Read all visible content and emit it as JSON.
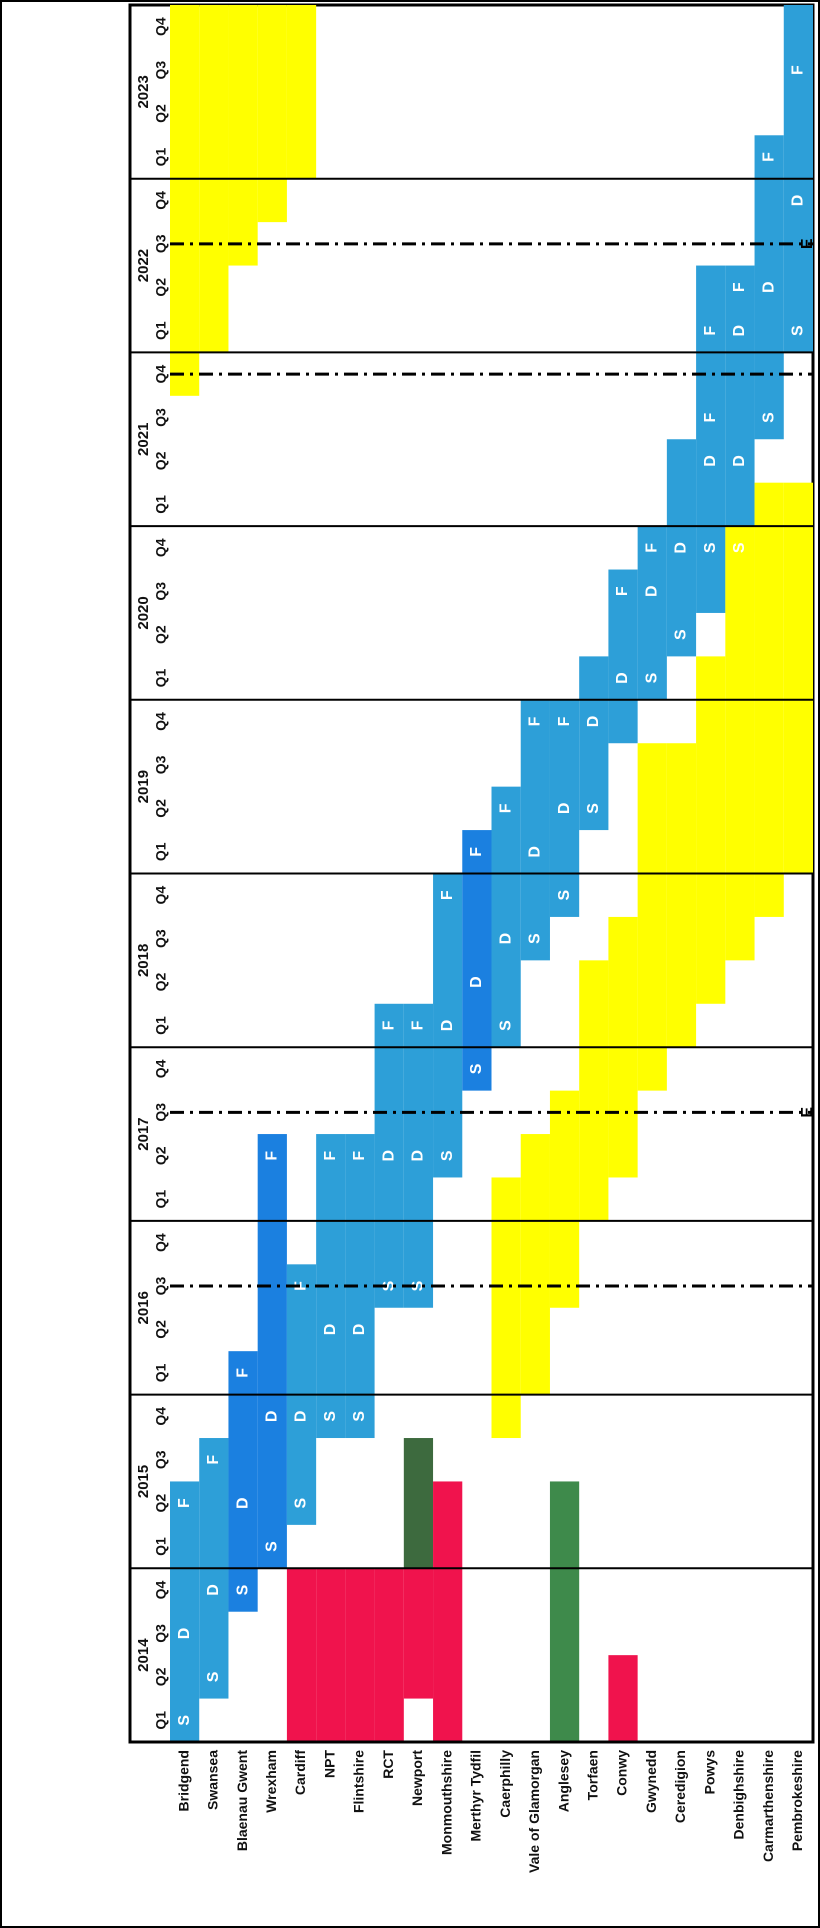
{
  "chart_data": {
    "type": "table",
    "years": [
      "2014",
      "2015",
      "2016",
      "2017",
      "2018",
      "2019",
      "2020",
      "2021",
      "2022",
      "2023"
    ],
    "quarter_labels": [
      "Q1",
      "Q2",
      "Q3",
      "Q4"
    ],
    "rows": [
      "Bridgend",
      "Swansea",
      "Blaenau Gwent",
      "Wrexham",
      "Cardiff",
      "NPT",
      "Flintshire",
      "RCT",
      "Newport",
      "Monmouthshire",
      "Merthyr Tydfil",
      "Caerphilly",
      "Vale of Glamorgan",
      "Anglesey",
      "Torfaen",
      "Conwy",
      "Gwynedd",
      "Ceredigion",
      "Powys",
      "Denbighshire",
      "Carmarthenshire",
      "Pembrokeshire"
    ],
    "colors": {
      "blue": "#2d9fd8",
      "darkblue": "#1b80e0",
      "yellow": "#ffff00",
      "red": "#f0134d",
      "green": "#3e8a4b",
      "olive": "#3d6a3e"
    },
    "quarter_start": "2014Q1",
    "bars": [
      {
        "row": 0,
        "from": "2014Q1",
        "to": "2015Q2",
        "color": "blue"
      },
      {
        "row": 1,
        "from": "2014Q2",
        "to": "2015Q3",
        "color": "blue"
      },
      {
        "row": 2,
        "from": "2014Q4",
        "to": "2016Q1",
        "color": "darkblue"
      },
      {
        "row": 3,
        "from": "2015Q1",
        "to": "2017Q2",
        "color": "darkblue"
      },
      {
        "row": 4,
        "from": "2015Q2",
        "to": "2016Q3",
        "color": "blue"
      },
      {
        "row": 5,
        "from": "2015Q4",
        "to": "2017Q2",
        "color": "blue"
      },
      {
        "row": 6,
        "from": "2015Q4",
        "to": "2017Q2",
        "color": "blue"
      },
      {
        "row": 7,
        "from": "2016Q3",
        "to": "2018Q1",
        "color": "blue"
      },
      {
        "row": 8,
        "from": "2016Q3",
        "to": "2018Q1",
        "color": "blue"
      },
      {
        "row": 9,
        "from": "2017Q2",
        "to": "2018Q4",
        "color": "blue"
      },
      {
        "row": 10,
        "from": "2017Q4",
        "to": "2019Q1",
        "color": "darkblue"
      },
      {
        "row": 11,
        "from": "2018Q1",
        "to": "2019Q2",
        "color": "blue"
      },
      {
        "row": 12,
        "from": "2018Q3",
        "to": "2019Q4",
        "color": "blue"
      },
      {
        "row": 13,
        "from": "2018Q4",
        "to": "2019Q4",
        "color": "blue"
      },
      {
        "row": 14,
        "from": "2019Q2",
        "to": "2020Q1",
        "color": "blue"
      },
      {
        "row": 15,
        "from": "2019Q4",
        "to": "2020Q3",
        "color": "blue"
      },
      {
        "row": 16,
        "from": "2020Q1",
        "to": "2020Q4",
        "color": "blue"
      },
      {
        "row": 17,
        "from": "2020Q2",
        "to": "2021Q2",
        "color": "blue"
      },
      {
        "row": 18,
        "from": "2020Q3",
        "to": "2022Q2",
        "color": "blue"
      },
      {
        "row": 19,
        "from": "2020Q3",
        "to": "2022Q2",
        "color": "blue"
      },
      {
        "row": 20,
        "from": "2021Q3",
        "to": "2023Q1",
        "color": "blue"
      },
      {
        "row": 21,
        "from": "2022Q1",
        "to": "2023Q4",
        "color": "blue"
      },
      {
        "row": 4,
        "from": "2014Q1",
        "to": "2014Q4",
        "color": "red"
      },
      {
        "row": 5,
        "from": "2014Q1",
        "to": "2014Q4",
        "color": "red"
      },
      {
        "row": 6,
        "from": "2014Q1",
        "to": "2014Q4",
        "color": "red"
      },
      {
        "row": 7,
        "from": "2014Q1",
        "to": "2014Q4",
        "color": "red"
      },
      {
        "row": 8,
        "from": "2014Q2",
        "to": "2014Q4",
        "color": "red"
      },
      {
        "row": 8,
        "from": "2015Q1",
        "to": "2015Q3",
        "color": "olive"
      },
      {
        "row": 9,
        "from": "2014Q1",
        "to": "2015Q2",
        "color": "red"
      },
      {
        "row": 13,
        "from": "2014Q1",
        "to": "2015Q2",
        "color": "green"
      },
      {
        "row": 15,
        "from": "2014Q1",
        "to": "2014Q2",
        "color": "red"
      },
      {
        "row": 0,
        "from": "2021Q4",
        "to": "2023Q4",
        "color": "yellow"
      },
      {
        "row": 1,
        "from": "2022Q1",
        "to": "2023Q4",
        "color": "yellow"
      },
      {
        "row": 2,
        "from": "2022Q3",
        "to": "2023Q4",
        "color": "yellow"
      },
      {
        "row": 3,
        "from": "2022Q4",
        "to": "2023Q4",
        "color": "yellow"
      },
      {
        "row": 4,
        "from": "2023Q1",
        "to": "2023Q4",
        "color": "yellow"
      },
      {
        "row": 11,
        "from": "2015Q4",
        "to": "2017Q1",
        "color": "yellow"
      },
      {
        "row": 12,
        "from": "2016Q1",
        "to": "2017Q2",
        "color": "yellow"
      },
      {
        "row": 13,
        "from": "2016Q3",
        "to": "2017Q3",
        "color": "yellow"
      },
      {
        "row": 14,
        "from": "2017Q1",
        "to": "2018Q2",
        "color": "yellow"
      },
      {
        "row": 15,
        "from": "2017Q2",
        "to": "2018Q3",
        "color": "yellow"
      },
      {
        "row": 16,
        "from": "2017Q4",
        "to": "2019Q3",
        "color": "yellow"
      },
      {
        "row": 17,
        "from": "2018Q1",
        "to": "2019Q3",
        "color": "yellow"
      },
      {
        "row": 18,
        "from": "2018Q2",
        "to": "2020Q1",
        "color": "yellow"
      },
      {
        "row": 19,
        "from": "2018Q3",
        "to": "2020Q4",
        "color": "yellow"
      },
      {
        "row": 20,
        "from": "2018Q4",
        "to": "2021Q1",
        "color": "yellow"
      },
      {
        "row": 21,
        "from": "2019Q1",
        "to": "2021Q1",
        "color": "yellow"
      }
    ],
    "letters": [
      {
        "row": 0,
        "q": "2014Q1",
        "t": "S"
      },
      {
        "row": 0,
        "q": "2014Q3",
        "t": "D"
      },
      {
        "row": 0,
        "q": "2015Q2",
        "t": "F"
      },
      {
        "row": 1,
        "q": "2014Q2",
        "t": "S"
      },
      {
        "row": 1,
        "q": "2014Q4",
        "t": "D"
      },
      {
        "row": 1,
        "q": "2015Q3",
        "t": "F"
      },
      {
        "row": 2,
        "q": "2014Q4",
        "t": "S"
      },
      {
        "row": 2,
        "q": "2015Q2",
        "t": "D"
      },
      {
        "row": 2,
        "q": "2016Q1",
        "t": "F"
      },
      {
        "row": 3,
        "q": "2015Q1",
        "t": "S"
      },
      {
        "row": 3,
        "q": "2015Q4",
        "t": "D"
      },
      {
        "row": 3,
        "q": "2017Q2",
        "t": "F"
      },
      {
        "row": 4,
        "q": "2015Q2",
        "t": "S"
      },
      {
        "row": 4,
        "q": "2015Q4",
        "t": "D"
      },
      {
        "row": 4,
        "q": "2016Q3",
        "t": "F"
      },
      {
        "row": 5,
        "q": "2015Q4",
        "t": "S"
      },
      {
        "row": 5,
        "q": "2016Q2",
        "t": "D"
      },
      {
        "row": 5,
        "q": "2017Q2",
        "t": "F"
      },
      {
        "row": 6,
        "q": "2015Q4",
        "t": "S"
      },
      {
        "row": 6,
        "q": "2016Q2",
        "t": "D"
      },
      {
        "row": 6,
        "q": "2017Q2",
        "t": "F"
      },
      {
        "row": 7,
        "q": "2016Q3",
        "t": "S"
      },
      {
        "row": 7,
        "q": "2017Q2",
        "t": "D"
      },
      {
        "row": 7,
        "q": "2018Q1",
        "t": "F"
      },
      {
        "row": 8,
        "q": "2016Q3",
        "t": "S"
      },
      {
        "row": 8,
        "q": "2017Q2",
        "t": "D"
      },
      {
        "row": 8,
        "q": "2018Q1",
        "t": "F"
      },
      {
        "row": 9,
        "q": "2017Q2",
        "t": "S"
      },
      {
        "row": 9,
        "q": "2018Q1",
        "t": "D"
      },
      {
        "row": 9,
        "q": "2018Q4",
        "t": "F"
      },
      {
        "row": 10,
        "q": "2017Q4",
        "t": "S"
      },
      {
        "row": 10,
        "q": "2018Q2",
        "t": "D"
      },
      {
        "row": 10,
        "q": "2019Q1",
        "t": "F"
      },
      {
        "row": 11,
        "q": "2018Q1",
        "t": "S"
      },
      {
        "row": 11,
        "q": "2018Q3",
        "t": "D"
      },
      {
        "row": 11,
        "q": "2019Q2",
        "t": "F"
      },
      {
        "row": 12,
        "q": "2018Q3",
        "t": "S"
      },
      {
        "row": 12,
        "q": "2019Q1",
        "t": "D"
      },
      {
        "row": 12,
        "q": "2019Q4",
        "t": "F"
      },
      {
        "row": 13,
        "q": "2018Q4",
        "t": "S"
      },
      {
        "row": 13,
        "q": "2019Q2",
        "t": "D"
      },
      {
        "row": 13,
        "q": "2019Q4",
        "t": "F"
      },
      {
        "row": 14,
        "q": "2019Q2",
        "t": "S"
      },
      {
        "row": 14,
        "q": "2019Q4",
        "t": "D"
      },
      {
        "row": 15,
        "q": "2020Q1",
        "t": "D"
      },
      {
        "row": 15,
        "q": "2020Q3",
        "t": "F"
      },
      {
        "row": 16,
        "q": "2020Q1",
        "t": "S"
      },
      {
        "row": 16,
        "q": "2020Q3",
        "t": "D"
      },
      {
        "row": 16,
        "q": "2020Q4",
        "t": "F"
      },
      {
        "row": 17,
        "q": "2020Q2",
        "t": "S"
      },
      {
        "row": 17,
        "q": "2020Q4",
        "t": "D"
      },
      {
        "row": 18,
        "q": "2020Q4",
        "t": "S"
      },
      {
        "row": 18,
        "q": "2021Q2",
        "t": "D"
      },
      {
        "row": 18,
        "q": "2021Q3",
        "t": "F"
      },
      {
        "row": 19,
        "q": "2020Q4",
        "t": "S"
      },
      {
        "row": 19,
        "q": "2021Q2",
        "t": "D"
      },
      {
        "row": 19,
        "q": "2022Q2",
        "t": "F"
      },
      {
        "row": 20,
        "q": "2021Q3",
        "t": "S"
      },
      {
        "row": 20,
        "q": "2022Q2",
        "t": "D"
      },
      {
        "row": 20,
        "q": "2023Q1",
        "t": "F"
      },
      {
        "row": 21,
        "q": "2022Q1",
        "t": "S"
      },
      {
        "row": 21,
        "q": "2022Q4",
        "t": "D"
      },
      {
        "row": 21,
        "q": "2023Q3",
        "t": "F"
      },
      {
        "row": 17,
        "q": "2021Q3",
        "t": "F"
      },
      {
        "row": 18,
        "q": "2022Q1",
        "t": "F"
      },
      {
        "row": 19,
        "q": "2022Q1",
        "t": "D"
      }
    ],
    "dashed_lines": [
      "2016Q3",
      "2017Q3",
      "2021Q4",
      "2022Q3"
    ],
    "marker_text": "E",
    "markers": [
      "2017Q3",
      "2022Q3"
    ]
  }
}
